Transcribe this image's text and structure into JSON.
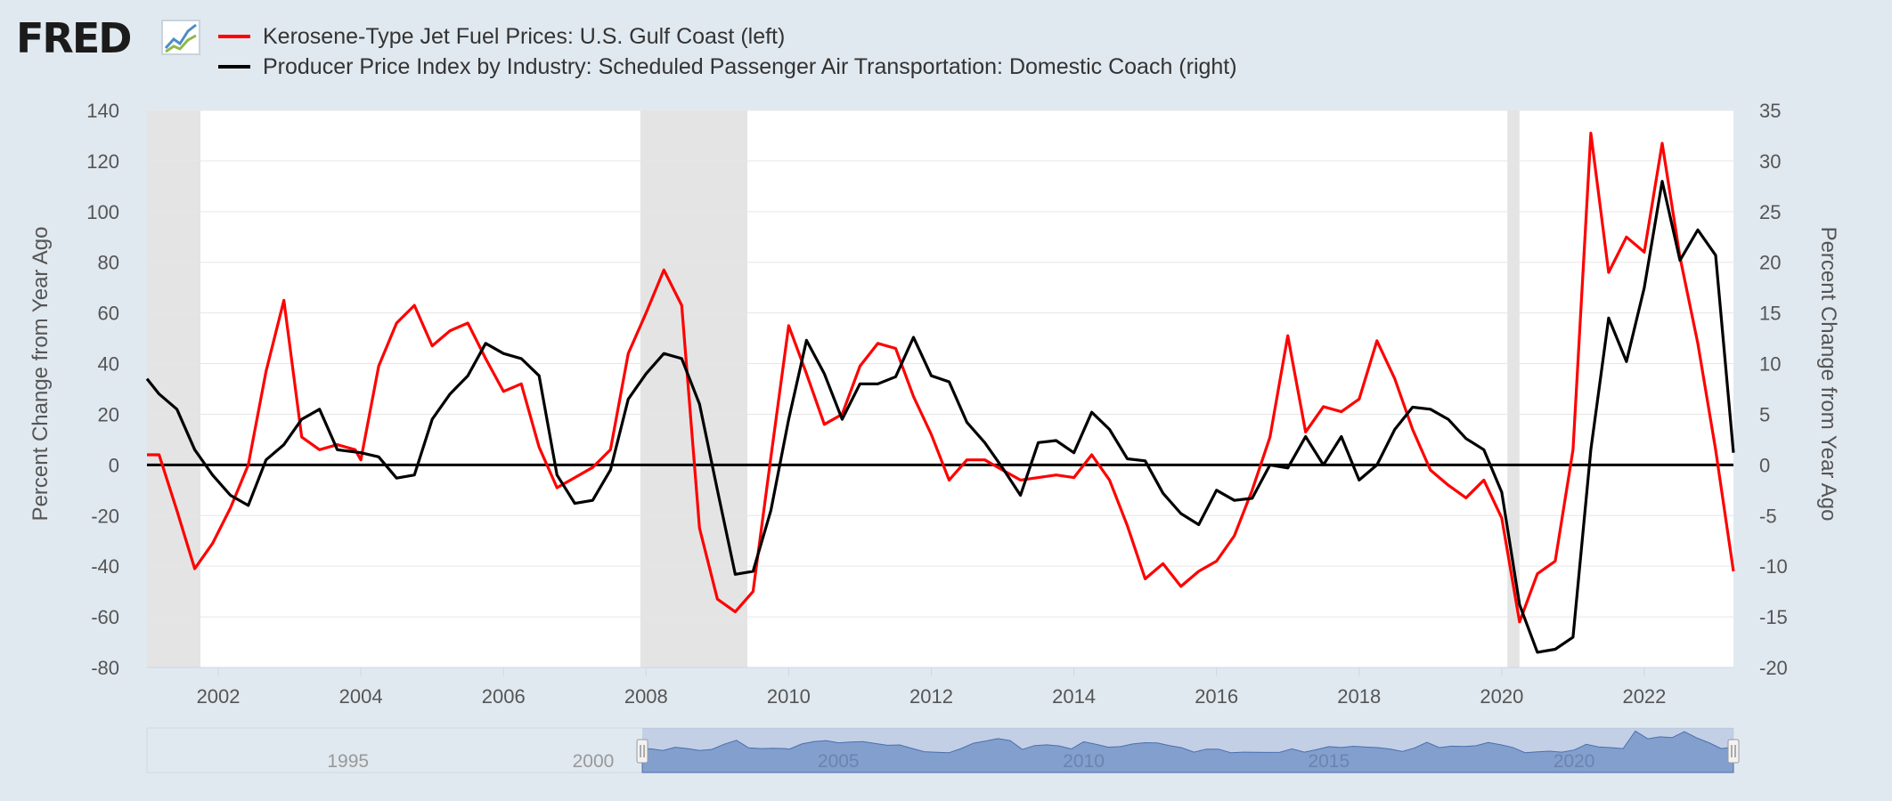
{
  "logo": {
    "text": "FRED",
    "icon": "trend-chart-icon"
  },
  "legend": [
    {
      "label": "Kerosene-Type Jet Fuel Prices: U.S. Gulf Coast (left)",
      "color": "#ff0000"
    },
    {
      "label": "Producer Price Index by Industry: Scheduled Passenger Air Transportation: Domestic Coach (right)",
      "color": "#000000"
    }
  ],
  "chart_data": {
    "type": "line",
    "y_left": {
      "label": "Percent Change from Year Ago",
      "range": [
        -80,
        140
      ],
      "ticks": [
        -80,
        -60,
        -40,
        -20,
        0,
        20,
        40,
        60,
        80,
        100,
        120,
        140
      ]
    },
    "y_right": {
      "label": "Percent Change from Year Ago",
      "range": [
        -20,
        35
      ],
      "ticks": [
        -20,
        -15,
        -10,
        -5,
        0,
        5,
        10,
        15,
        20,
        25,
        30,
        35
      ]
    },
    "x_range": [
      2001.0,
      2023.25
    ],
    "x_ticks": [
      "2002",
      "2004",
      "2006",
      "2008",
      "2010",
      "2012",
      "2014",
      "2016",
      "2018",
      "2020",
      "2022"
    ],
    "recessions": [
      [
        2001.0,
        2001.75
      ],
      [
        2007.92,
        2009.42
      ],
      [
        2020.08,
        2020.25
      ]
    ],
    "series": [
      {
        "name": "Kerosene-Type Jet Fuel Prices: U.S. Gulf Coast (left)",
        "axis": "left",
        "color": "#ff0000",
        "points": [
          [
            2001.0,
            4
          ],
          [
            2001.17,
            4
          ],
          [
            2001.42,
            -18
          ],
          [
            2001.67,
            -41
          ],
          [
            2001.92,
            -31
          ],
          [
            2002.17,
            -17
          ],
          [
            2002.42,
            0
          ],
          [
            2002.67,
            37
          ],
          [
            2002.92,
            65
          ],
          [
            2003.17,
            11
          ],
          [
            2003.42,
            6
          ],
          [
            2003.67,
            8
          ],
          [
            2003.92,
            6
          ],
          [
            2004.0,
            2
          ],
          [
            2004.25,
            39
          ],
          [
            2004.5,
            56
          ],
          [
            2004.75,
            63
          ],
          [
            2005.0,
            47
          ],
          [
            2005.25,
            53
          ],
          [
            2005.5,
            56
          ],
          [
            2005.75,
            42
          ],
          [
            2006.0,
            29
          ],
          [
            2006.25,
            32
          ],
          [
            2006.5,
            7
          ],
          [
            2006.75,
            -9
          ],
          [
            2007.0,
            -5
          ],
          [
            2007.25,
            -1
          ],
          [
            2007.5,
            6
          ],
          [
            2007.75,
            44
          ],
          [
            2008.0,
            60
          ],
          [
            2008.25,
            77
          ],
          [
            2008.5,
            63
          ],
          [
            2008.75,
            -25
          ],
          [
            2009.0,
            -53
          ],
          [
            2009.25,
            -58
          ],
          [
            2009.5,
            -50
          ],
          [
            2009.75,
            3
          ],
          [
            2010.0,
            55
          ],
          [
            2010.25,
            36
          ],
          [
            2010.5,
            16
          ],
          [
            2010.75,
            20
          ],
          [
            2011.0,
            39
          ],
          [
            2011.25,
            48
          ],
          [
            2011.5,
            46
          ],
          [
            2011.75,
            27
          ],
          [
            2012.0,
            12
          ],
          [
            2012.25,
            -6
          ],
          [
            2012.5,
            2
          ],
          [
            2012.75,
            2
          ],
          [
            2013.0,
            -2
          ],
          [
            2013.25,
            -6
          ],
          [
            2013.5,
            -5
          ],
          [
            2013.75,
            -4
          ],
          [
            2014.0,
            -5
          ],
          [
            2014.25,
            4
          ],
          [
            2014.5,
            -6
          ],
          [
            2014.75,
            -24
          ],
          [
            2015.0,
            -45
          ],
          [
            2015.25,
            -39
          ],
          [
            2015.5,
            -48
          ],
          [
            2015.75,
            -42
          ],
          [
            2016.0,
            -38
          ],
          [
            2016.25,
            -28
          ],
          [
            2016.5,
            -10
          ],
          [
            2016.75,
            11
          ],
          [
            2017.0,
            51
          ],
          [
            2017.25,
            13
          ],
          [
            2017.5,
            23
          ],
          [
            2017.75,
            21
          ],
          [
            2018.0,
            26
          ],
          [
            2018.25,
            49
          ],
          [
            2018.5,
            34
          ],
          [
            2018.75,
            14
          ],
          [
            2019.0,
            -2
          ],
          [
            2019.25,
            -8
          ],
          [
            2019.5,
            -13
          ],
          [
            2019.75,
            -6
          ],
          [
            2020.0,
            -21
          ],
          [
            2020.25,
            -62
          ],
          [
            2020.5,
            -43
          ],
          [
            2020.75,
            -38
          ],
          [
            2021.0,
            6
          ],
          [
            2021.25,
            131
          ],
          [
            2021.5,
            76
          ],
          [
            2021.75,
            90
          ],
          [
            2022.0,
            84
          ],
          [
            2022.25,
            127
          ],
          [
            2022.5,
            82
          ],
          [
            2022.75,
            48
          ],
          [
            2023.0,
            6
          ],
          [
            2023.25,
            -42
          ]
        ]
      },
      {
        "name": "Producer Price Index by Industry: Scheduled Passenger Air Transportation: Domestic Coach (right)",
        "axis": "right",
        "color": "#000000",
        "points": [
          [
            2001.0,
            8.5
          ],
          [
            2001.17,
            7
          ],
          [
            2001.42,
            5.5
          ],
          [
            2001.67,
            1.5
          ],
          [
            2001.92,
            -1
          ],
          [
            2002.17,
            -3
          ],
          [
            2002.42,
            -4
          ],
          [
            2002.67,
            0.5
          ],
          [
            2002.92,
            2
          ],
          [
            2003.17,
            4.5
          ],
          [
            2003.42,
            5.5
          ],
          [
            2003.67,
            1.5
          ],
          [
            2004.0,
            1.2
          ],
          [
            2004.25,
            0.8
          ],
          [
            2004.5,
            -1.3
          ],
          [
            2004.75,
            -1
          ],
          [
            2005.0,
            4.5
          ],
          [
            2005.25,
            7
          ],
          [
            2005.5,
            8.8
          ],
          [
            2005.75,
            12
          ],
          [
            2006.0,
            11
          ],
          [
            2006.25,
            10.5
          ],
          [
            2006.5,
            8.8
          ],
          [
            2006.75,
            -1
          ],
          [
            2007.0,
            -3.8
          ],
          [
            2007.25,
            -3.5
          ],
          [
            2007.5,
            -0.5
          ],
          [
            2007.75,
            6.5
          ],
          [
            2008.0,
            9
          ],
          [
            2008.25,
            11
          ],
          [
            2008.5,
            10.5
          ],
          [
            2008.75,
            6
          ],
          [
            2009.0,
            -2.5
          ],
          [
            2009.25,
            -10.8
          ],
          [
            2009.5,
            -10.5
          ],
          [
            2009.75,
            -4.5
          ],
          [
            2010.0,
            4.5
          ],
          [
            2010.25,
            12.3
          ],
          [
            2010.5,
            9
          ],
          [
            2010.75,
            4.5
          ],
          [
            2011.0,
            8
          ],
          [
            2011.25,
            8
          ],
          [
            2011.5,
            8.7
          ],
          [
            2011.75,
            12.6
          ],
          [
            2012.0,
            8.8
          ],
          [
            2012.25,
            8.2
          ],
          [
            2012.5,
            4.2
          ],
          [
            2012.75,
            2.2
          ],
          [
            2013.0,
            -0.3
          ],
          [
            2013.25,
            -3
          ],
          [
            2013.5,
            2.2
          ],
          [
            2013.75,
            2.4
          ],
          [
            2014.0,
            1.2
          ],
          [
            2014.25,
            5.2
          ],
          [
            2014.5,
            3.5
          ],
          [
            2014.75,
            0.6
          ],
          [
            2015.0,
            0.4
          ],
          [
            2015.25,
            -2.8
          ],
          [
            2015.5,
            -4.8
          ],
          [
            2015.75,
            -5.9
          ],
          [
            2016.0,
            -2.5
          ],
          [
            2016.25,
            -3.5
          ],
          [
            2016.5,
            -3.3
          ],
          [
            2016.75,
            0
          ],
          [
            2017.0,
            -0.3
          ],
          [
            2017.25,
            2.8
          ],
          [
            2017.5,
            0
          ],
          [
            2017.75,
            2.8
          ],
          [
            2018.0,
            -1.5
          ],
          [
            2018.25,
            0
          ],
          [
            2018.5,
            3.5
          ],
          [
            2018.75,
            5.7
          ],
          [
            2019.0,
            5.5
          ],
          [
            2019.25,
            4.5
          ],
          [
            2019.5,
            2.6
          ],
          [
            2019.75,
            1.5
          ],
          [
            2020.0,
            -2.7
          ],
          [
            2020.25,
            -13.8
          ],
          [
            2020.5,
            -18.5
          ],
          [
            2020.75,
            -18.2
          ],
          [
            2021.0,
            -17
          ],
          [
            2021.25,
            1.5
          ],
          [
            2021.5,
            14.5
          ],
          [
            2021.75,
            10.2
          ],
          [
            2022.0,
            17.5
          ],
          [
            2022.25,
            28
          ],
          [
            2022.5,
            20.2
          ],
          [
            2022.75,
            23.2
          ],
          [
            2023.0,
            20.7
          ],
          [
            2023.25,
            1.2
          ]
        ]
      }
    ],
    "navigator": {
      "labels": [
        "1995",
        "2000",
        "2005",
        "2010",
        "2015",
        "2020"
      ]
    }
  }
}
